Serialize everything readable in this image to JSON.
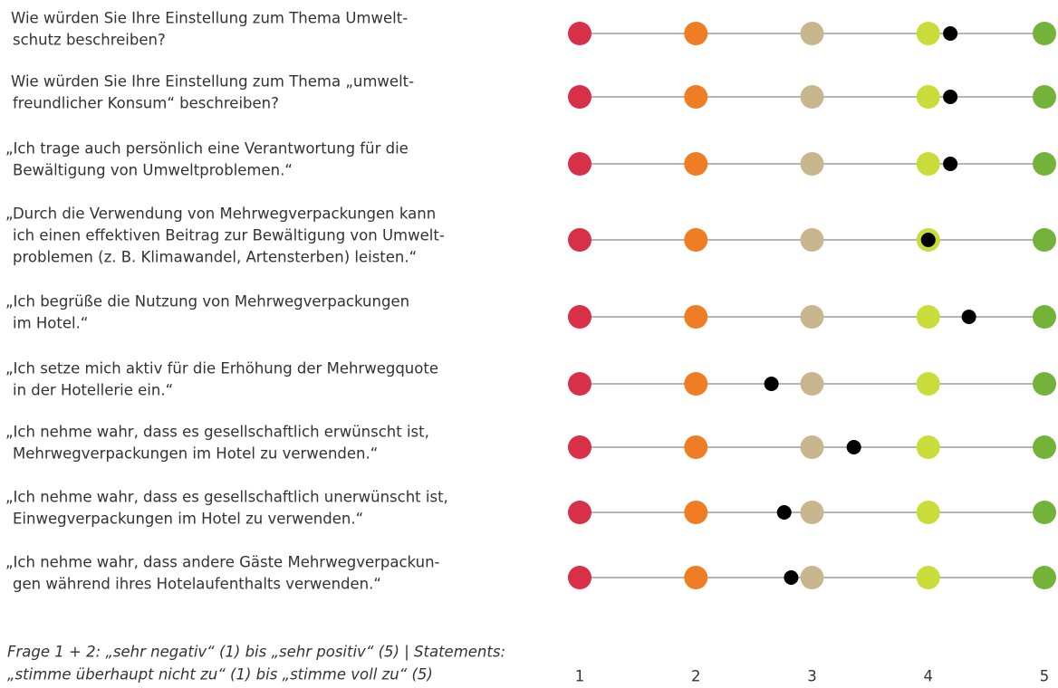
{
  "chart_data": {
    "type": "dot",
    "categories": [
      [
        "Wie würden Sie Ihre Einstellung zum Thema Umwelt-",
        "schutz beschreiben?"
      ],
      [
        "Wie würden Sie Ihre Einstellung zum Thema „umwelt-",
        "freundlicher Konsum“ beschreiben?"
      ],
      [
        "„Ich trage auch persönlich eine Verantwortung für die",
        "Bewältigung von Umweltproblemen.“"
      ],
      [
        "„Durch die Verwendung von Mehrwegverpackungen kann",
        "ich einen effektiven Beitrag zur Bewältigung von Umwelt-",
        "problemen (z. B. Klimawandel, Artensterben) leisten.“"
      ],
      [
        "„Ich begrüße die Nutzung von Mehrwegverpackungen",
        "im Hotel.“"
      ],
      [
        "„Ich setze mich aktiv für die Erhöhung der Mehrwegquote",
        "in der Hotellerie ein.“"
      ],
      [
        "„Ich nehme wahr, dass es gesellschaftlich erwünscht ist,",
        "Mehrwegverpackungen im Hotel zu verwenden.“"
      ],
      [
        "„Ich nehme wahr, dass es gesellschaftlich unerwünscht ist,",
        "Einwegverpackungen im Hotel zu verwenden.“"
      ],
      [
        "„Ich nehme wahr, dass andere Gäste Mehrwegverpackun-",
        "gen während ihres Hotelaufenthalts verwenden.“"
      ]
    ],
    "values": [
      4.19,
      4.19,
      4.19,
      4.0,
      4.35,
      2.65,
      3.36,
      2.76,
      2.82
    ],
    "color": "#000000",
    "scale_colors": [
      "#d9304a",
      "#ee7d23",
      "#c8b68f",
      "#c9dc3a",
      "#73b33a"
    ],
    "xlim": [
      1,
      5
    ],
    "xticks": [
      1,
      2,
      3,
      4,
      5
    ],
    "note": [
      "Frage 1 + 2: „sehr negativ“ (1) bis „sehr positiv“ (5) | Statements:",
      "„stimme überhaupt nicht zu“ (1) bis „stimme voll zu“ (5)"
    ]
  }
}
